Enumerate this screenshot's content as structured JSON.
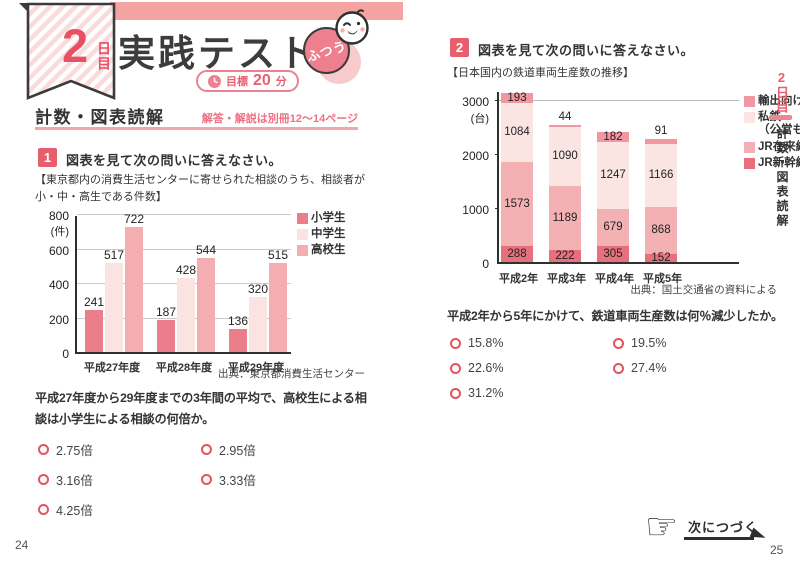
{
  "colors": {
    "accent_pink": "#e85064",
    "strip_pink": "#f5a2a2",
    "badge_fill": "#ee7f8f",
    "underline_pink": "#f2a6a9",
    "radio_ring": "#e2545e"
  },
  "page_left": {
    "page_number": "24",
    "banner": {
      "number": "2",
      "suffix": "日目"
    },
    "title": "実践テスト",
    "difficulty_badge": "ふつう",
    "goal": {
      "label": "目標",
      "minutes": "20",
      "unit": "分"
    },
    "section_title": "計数・図表読解",
    "answer_ref": "解答・解説は別冊12～14ページ",
    "q1": {
      "number": "1",
      "prompt": "図表を見て次の問いに答えなさい。",
      "question": "平成27年度から29年度までの3年間の平均で、高校生による相談は小学生による相談の何倍か。",
      "options": [
        "2.75倍",
        "2.95倍",
        "3.16倍",
        "3.33倍",
        "4.25倍"
      ]
    }
  },
  "page_right": {
    "page_number": "25",
    "q2": {
      "number": "2",
      "prompt": "図表を見て次の問いに答えなさい。",
      "question": "平成2年から5年にかけて、鉄道車両生産数は何％減少したか。",
      "options": [
        "15.8%",
        "19.5%",
        "22.6%",
        "27.4%",
        "31.2%"
      ]
    },
    "sidebar": {
      "day": "2日目",
      "section": "計数・図表読解"
    },
    "next_label": "次につづく"
  },
  "chart_data": [
    {
      "type": "bar",
      "title_caption": "【東京都内の消費生活センターに寄せられた相談のうち、相談者が小・中・高生である件数】",
      "categories": [
        "平成27年度",
        "平成28年度",
        "平成29年度"
      ],
      "series": [
        {
          "name": "小学生",
          "color": "#eb7e8b",
          "values": [
            241,
            187,
            136
          ]
        },
        {
          "name": "中学生",
          "color": "#fbe3e2",
          "values": [
            517,
            428,
            320
          ]
        },
        {
          "name": "高校生",
          "color": "#f4adb0",
          "values": [
            722,
            544,
            515
          ]
        }
      ],
      "ylabel": "(件)",
      "ymax": 800,
      "yticks": [
        0,
        200,
        400,
        600,
        800
      ],
      "grid": true,
      "legend_position": "top-right",
      "source": "出典：東京都消費生活センター"
    },
    {
      "type": "stacked-bar",
      "title_caption": "【日本国内の鉄道車両生産数の推移】",
      "categories": [
        "平成2年",
        "平成3年",
        "平成4年",
        "平成5年"
      ],
      "series": [
        {
          "name": "JR新幹線",
          "color": "#e8707d",
          "values": [
            288,
            222,
            305,
            152
          ]
        },
        {
          "name": "JR在来線",
          "color": "#f4b1b4",
          "values": [
            1573,
            1189,
            679,
            868
          ]
        },
        {
          "name": "私鉄（公営も含む）",
          "color": "#fbe5e3",
          "values": [
            1084,
            1090,
            1247,
            1166
          ]
        },
        {
          "name": "輸出向け",
          "color": "#f097a1",
          "values": [
            193,
            44,
            182,
            91
          ]
        }
      ],
      "totals": [
        3138,
        2545,
        2413,
        2277
      ],
      "legend": [
        {
          "label": "輸出向け",
          "color": "#f097a1"
        },
        {
          "label": "私鉄",
          "label2": "（公営も含む）",
          "color": "#fbe5e3"
        },
        {
          "label": "JR在来線",
          "color": "#f4b1b4"
        },
        {
          "label": "JR新幹線",
          "color": "#e8707d"
        }
      ],
      "ylabel": "(台)",
      "ymax": 3000,
      "yticks": [
        0,
        1000,
        2000,
        3000
      ],
      "grid": false,
      "legend_position": "right",
      "source": "出典：国土交通省の資料による"
    }
  ]
}
